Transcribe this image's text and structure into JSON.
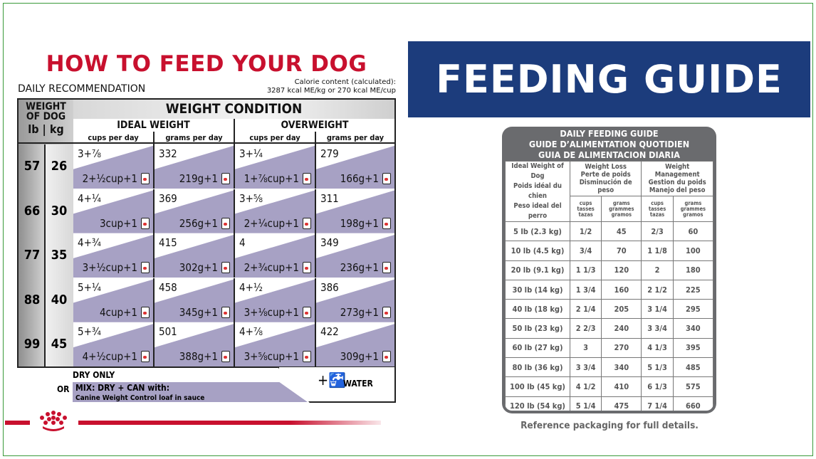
{
  "left": {
    "title": "HOW TO FEED YOUR DOG",
    "subtitle": "DAILY RECOMMENDATION",
    "calorie_line1": "Calorie content (calculated):",
    "calorie_line2": "3287 kcal ME/kg or 270 kcal ME/cup",
    "weight_of_dog": "WEIGHT OF DOG",
    "lb": "lb",
    "kg": "kg",
    "weight_condition": "WEIGHT CONDITION",
    "ideal": "IDEAL WEIGHT",
    "overweight": "OVERWEIGHT",
    "cups_per_day": "cups per day",
    "grams_per_day": "grams per day",
    "rows": [
      {
        "lb": "57",
        "kg": "26",
        "cells": [
          [
            "3+⅞",
            "2+½cup+1"
          ],
          [
            "332",
            "219g+1"
          ],
          [
            "3+¼",
            "1+⅞cup+1"
          ],
          [
            "279",
            "166g+1"
          ]
        ]
      },
      {
        "lb": "66",
        "kg": "30",
        "cells": [
          [
            "4+¼",
            "3cup+1"
          ],
          [
            "369",
            "256g+1"
          ],
          [
            "3+⅝",
            "2+¼cup+1"
          ],
          [
            "311",
            "198g+1"
          ]
        ]
      },
      {
        "lb": "77",
        "kg": "35",
        "cells": [
          [
            "4+¾",
            "3+½cup+1"
          ],
          [
            "415",
            "302g+1"
          ],
          [
            "4",
            "2+¾cup+1"
          ],
          [
            "349",
            "236g+1"
          ]
        ]
      },
      {
        "lb": "88",
        "kg": "40",
        "cells": [
          [
            "5+¼",
            "4cup+1"
          ],
          [
            "458",
            "345g+1"
          ],
          [
            "4+½",
            "3+⅛cup+1"
          ],
          [
            "386",
            "273g+1"
          ]
        ]
      },
      {
        "lb": "99",
        "kg": "45",
        "cells": [
          [
            "5+¾",
            "4+½cup+1"
          ],
          [
            "501",
            "388g+1"
          ],
          [
            "4+⅞",
            "3+⅝cup+1"
          ],
          [
            "422",
            "309g+1"
          ]
        ]
      }
    ],
    "dry_only": "DRY ONLY",
    "or": "OR",
    "mix": "MIX: DRY + CAN with:",
    "mix_product": "Canine Weight Control loaf in sauce",
    "water": "WATER",
    "brand_color": "#c8102e",
    "accent_color": "#a7a1c4"
  },
  "right": {
    "banner": "FEEDING GUIDE",
    "banner_color": "#1c3c7c",
    "title_lines": [
      "DAILY FEEDING GUIDE",
      "GUIDE D’ALIMENTATION QUOTIDIEN",
      "GUIA DE ALIMENTACION DIARIA"
    ],
    "weight_header": [
      "Ideal Weight of Dog",
      "Poids idéal du chien",
      "Peso ideal del perro"
    ],
    "loss_header": [
      "Weight Loss",
      "Perte de poids",
      "Disminución de peso"
    ],
    "mgmt_header": [
      "Weight Management",
      "Gestion du poids",
      "Manejo del peso"
    ],
    "cups_units": [
      "cups",
      "tasses",
      "tazas"
    ],
    "grams_units": [
      "grams",
      "grammes",
      "gramos"
    ],
    "rows": [
      [
        "5 lb (2.3 kg)",
        "1/2",
        "45",
        "2/3",
        "60"
      ],
      [
        "10 lb (4.5 kg)",
        "3/4",
        "70",
        "1 1/8",
        "100"
      ],
      [
        "20 lb (9.1 kg)",
        "1 1/3",
        "120",
        "2",
        "180"
      ],
      [
        "30 lb (14 kg)",
        "1 3/4",
        "160",
        "2 1/2",
        "225"
      ],
      [
        "40 lb (18 kg)",
        "2 1/4",
        "205",
        "3 1/4",
        "295"
      ],
      [
        "50 lb (23 kg)",
        "2 2/3",
        "240",
        "3 3/4",
        "340"
      ],
      [
        "60 lb (27 kg)",
        "3",
        "270",
        "4 1/3",
        "395"
      ],
      [
        "80 lb (36 kg)",
        "3 3/4",
        "340",
        "5 1/3",
        "485"
      ],
      [
        "100 lb (45 kg)",
        "4 1/2",
        "410",
        "6 1/3",
        "575"
      ],
      [
        "120 lb (54 kg)",
        "5 1/4",
        "475",
        "7 1/4",
        "660"
      ]
    ],
    "footer": "Reference packaging for full details."
  }
}
